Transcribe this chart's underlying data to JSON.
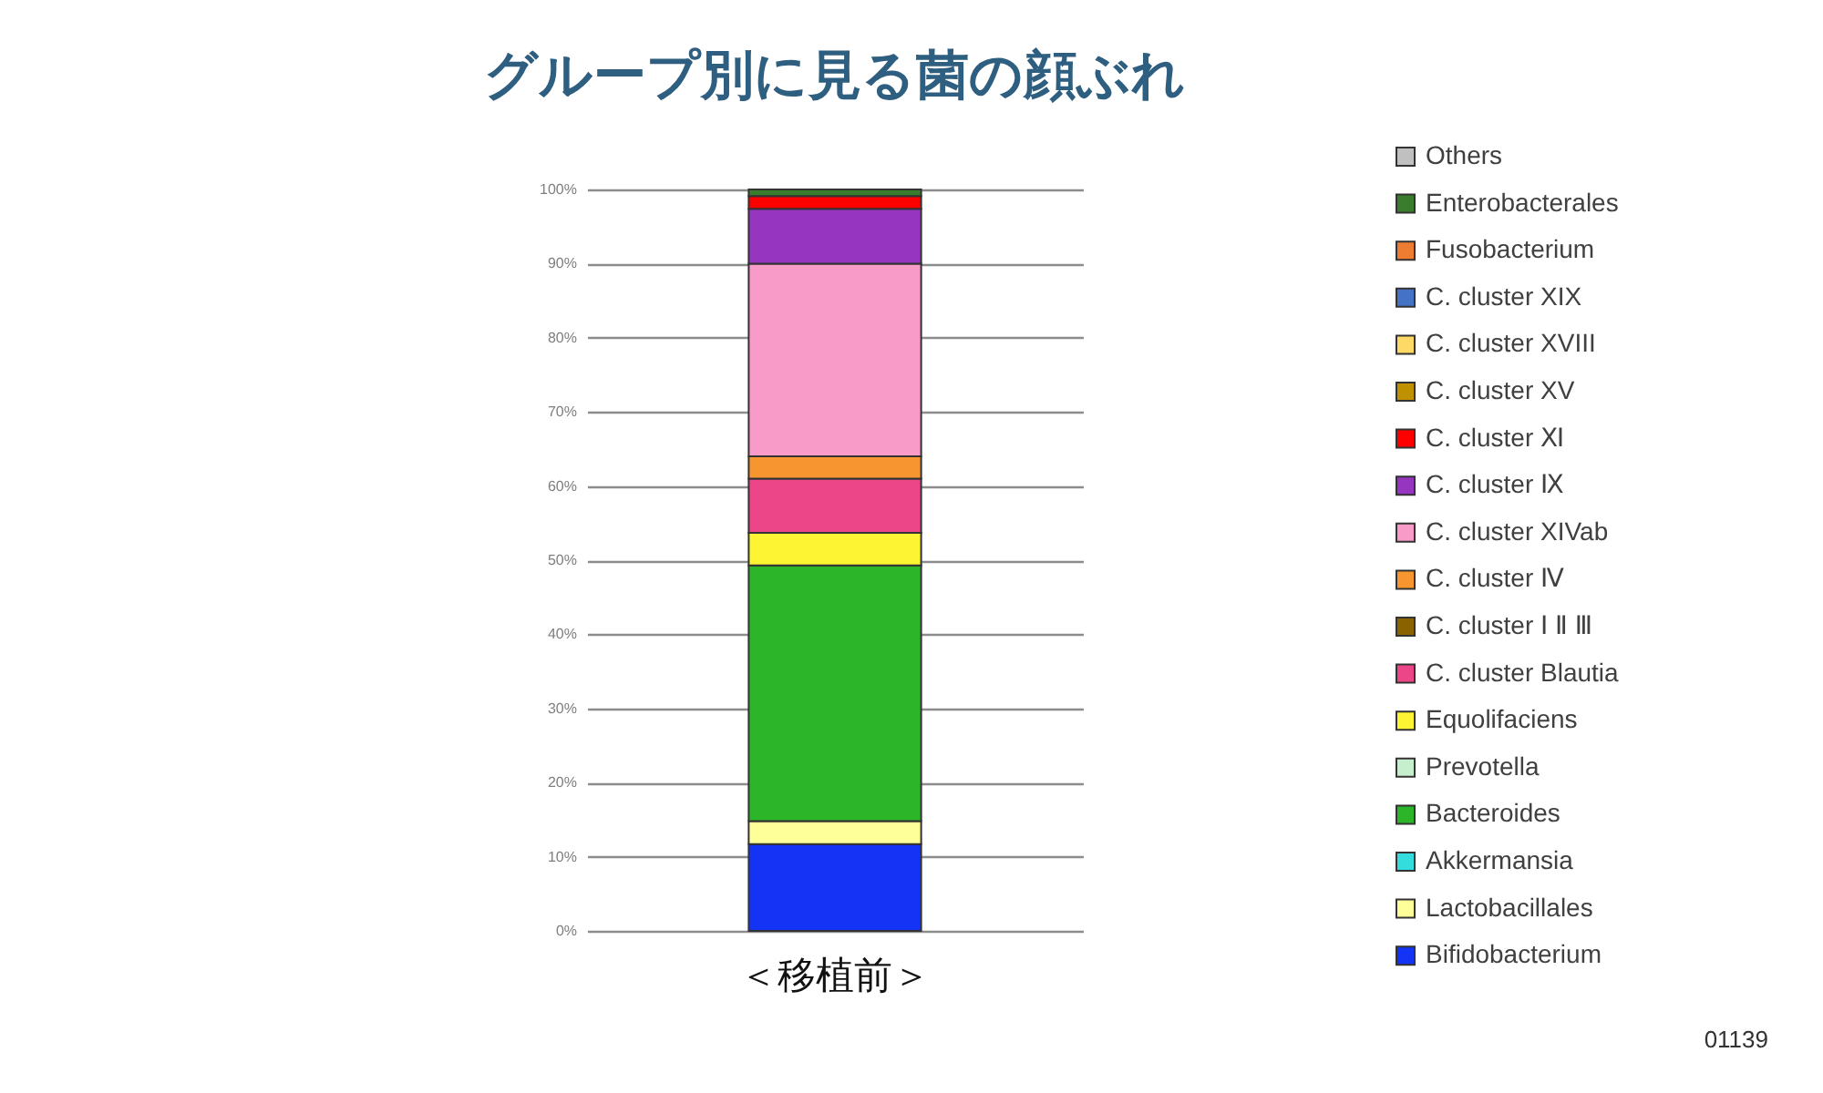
{
  "chart_data": {
    "type": "bar",
    "title": "グループ別に見る菌の顔ぶれ",
    "categories": [
      "＜移植前＞"
    ],
    "stacked": true,
    "series": [
      {
        "name": "Bifidobacterium",
        "color": "#1434f5",
        "values": [
          11.7
        ]
      },
      {
        "name": "Lactobacillales",
        "color": "#ffff99",
        "values": [
          3.1
        ]
      },
      {
        "name": "Akkermansia",
        "color": "#33dddd",
        "values": [
          0
        ]
      },
      {
        "name": "Bacteroides",
        "color": "#2db52a",
        "values": [
          34.5
        ]
      },
      {
        "name": "Prevotella",
        "color": "#c6efce",
        "values": [
          0
        ]
      },
      {
        "name": "Equolifaciens",
        "color": "#fdf533",
        "values": [
          4.4
        ]
      },
      {
        "name": "C. cluster Blautia",
        "color": "#ec4688",
        "values": [
          7.3
        ]
      },
      {
        "name": "C. cluster Ⅰ Ⅱ Ⅲ",
        "color": "#8a6200",
        "values": [
          0
        ]
      },
      {
        "name": "C. cluster Ⅳ",
        "color": "#f7962f",
        "values": [
          3.0
        ]
      },
      {
        "name": "C. cluster XIVab",
        "color": "#f99bc9",
        "values": [
          26.0
        ]
      },
      {
        "name": "C. cluster Ⅸ",
        "color": "#9535c0",
        "values": [
          7.4
        ]
      },
      {
        "name": "C. cluster Ⅺ",
        "color": "#ff0000",
        "values": [
          1.7
        ]
      },
      {
        "name": "C. cluster XV",
        "color": "#bf9000",
        "values": [
          0
        ]
      },
      {
        "name": "C. cluster XVIII",
        "color": "#ffd966",
        "values": [
          0
        ]
      },
      {
        "name": "C. cluster XIX",
        "color": "#4472c4",
        "values": [
          0
        ]
      },
      {
        "name": "Fusobacterium",
        "color": "#ee7d31",
        "values": [
          0
        ]
      },
      {
        "name": "Enterobacterales",
        "color": "#3a7d2c",
        "values": [
          0.9
        ]
      },
      {
        "name": "Others",
        "color": "#c0c0c0",
        "values": [
          0
        ]
      }
    ],
    "ylim": [
      0,
      100
    ],
    "yticks": [
      {
        "value": 0,
        "label": "0%"
      },
      {
        "value": 10,
        "label": "10%"
      },
      {
        "value": 20,
        "label": "20%"
      },
      {
        "value": 30,
        "label": "30%"
      },
      {
        "value": 40,
        "label": "40%"
      },
      {
        "value": 50,
        "label": "50%"
      },
      {
        "value": 60,
        "label": "60%"
      },
      {
        "value": 70,
        "label": "70%"
      },
      {
        "value": 80,
        "label": "80%"
      },
      {
        "value": 90,
        "label": "90%"
      },
      {
        "value": 100,
        "label": "100%"
      }
    ],
    "grid": "y",
    "legend": "right",
    "annotations": [
      "01139"
    ]
  }
}
